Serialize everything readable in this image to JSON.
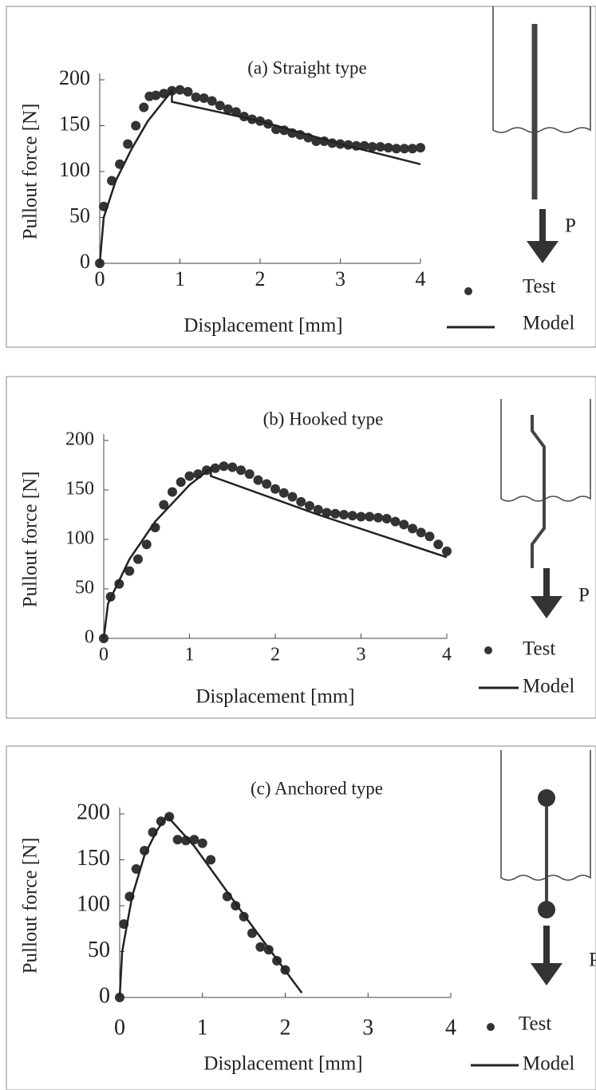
{
  "chart_data": [
    {
      "type": "line",
      "title": "(a) Straight type",
      "x_label": "Displacement [mm]",
      "y_label": "Pullout force [N]",
      "xlim": [
        0,
        4
      ],
      "ylim": [
        0,
        200
      ],
      "xticks": [
        0,
        1,
        2,
        3,
        4
      ],
      "yticks": [
        0,
        50,
        100,
        150,
        200
      ],
      "annotation": "P",
      "series": [
        {
          "name": "Test",
          "style": "markers",
          "color": "#333333",
          "x": [
            0,
            0.05,
            0.15,
            0.25,
            0.35,
            0.45,
            0.55,
            0.62,
            0.7,
            0.8,
            0.9,
            1.0,
            1.1,
            1.2,
            1.3,
            1.4,
            1.5,
            1.6,
            1.7,
            1.8,
            1.9,
            2.0,
            2.1,
            2.2,
            2.3,
            2.4,
            2.5,
            2.6,
            2.7,
            2.8,
            2.9,
            3.0,
            3.1,
            3.2,
            3.3,
            3.4,
            3.5,
            3.6,
            3.7,
            3.8,
            3.9,
            4.0
          ],
          "values": [
            0,
            62,
            90,
            108,
            130,
            150,
            170,
            182,
            183,
            185,
            188,
            189,
            187,
            181,
            180,
            177,
            172,
            168,
            165,
            160,
            157,
            155,
            152,
            146,
            145,
            142,
            140,
            137,
            133,
            133,
            131,
            130,
            129,
            128,
            128,
            127,
            127,
            126,
            125,
            125,
            125,
            126
          ]
        },
        {
          "name": "Model",
          "style": "line",
          "color": "#222222",
          "x": [
            0,
            0.05,
            0.2,
            0.4,
            0.6,
            0.9,
            0.9,
            2,
            3,
            4
          ],
          "values": [
            0,
            50,
            90,
            125,
            155,
            188,
            176,
            155,
            130,
            108
          ]
        }
      ]
    },
    {
      "type": "line",
      "title": "(b) Hooked type",
      "x_label": "Displacement [mm]",
      "y_label": "Pullout force [N]",
      "xlim": [
        0,
        4
      ],
      "ylim": [
        0,
        200
      ],
      "xticks": [
        0,
        1,
        2,
        3,
        4
      ],
      "yticks": [
        0,
        50,
        100,
        150,
        200
      ],
      "annotation": "P",
      "series": [
        {
          "name": "Test",
          "style": "markers",
          "color": "#333333",
          "x": [
            0,
            0.08,
            0.18,
            0.3,
            0.4,
            0.5,
            0.6,
            0.7,
            0.8,
            0.9,
            1.0,
            1.1,
            1.2,
            1.3,
            1.4,
            1.5,
            1.6,
            1.7,
            1.8,
            1.9,
            2.0,
            2.1,
            2.2,
            2.3,
            2.4,
            2.5,
            2.6,
            2.7,
            2.8,
            2.9,
            3.0,
            3.1,
            3.2,
            3.3,
            3.4,
            3.5,
            3.6,
            3.7,
            3.8,
            3.9,
            4.0
          ],
          "values": [
            0,
            42,
            55,
            68,
            80,
            95,
            112,
            135,
            148,
            158,
            164,
            166,
            170,
            172,
            174,
            173,
            170,
            166,
            160,
            156,
            151,
            147,
            143,
            138,
            134,
            130,
            127,
            126,
            125,
            124,
            123,
            123,
            122,
            121,
            118,
            115,
            111,
            107,
            103,
            95,
            88
          ]
        },
        {
          "name": "Model",
          "style": "line",
          "color": "#222222",
          "x": [
            0,
            0.05,
            0.3,
            0.6,
            1.0,
            1.25,
            1.25,
            2.5,
            4
          ],
          "values": [
            0,
            35,
            80,
            118,
            155,
            172,
            164,
            125,
            82
          ]
        }
      ]
    },
    {
      "type": "line",
      "title": "(c)  Anchored type",
      "x_label": "Displacement [mm]",
      "y_label": "Pullout force [N]",
      "xlim": [
        0,
        4
      ],
      "ylim": [
        0,
        200
      ],
      "xticks": [
        0,
        1,
        2,
        3,
        4
      ],
      "yticks": [
        0,
        50,
        100,
        150,
        200
      ],
      "annotation": "P",
      "series": [
        {
          "name": "Test",
          "style": "markers",
          "color": "#333333",
          "x": [
            0,
            0.05,
            0.12,
            0.2,
            0.3,
            0.4,
            0.5,
            0.6,
            0.7,
            0.8,
            0.9,
            1.0,
            1.1,
            1.3,
            1.4,
            1.5,
            1.6,
            1.7,
            1.8,
            1.9,
            2.0
          ],
          "values": [
            0,
            80,
            110,
            140,
            160,
            180,
            192,
            197,
            172,
            171,
            172,
            168,
            150,
            110,
            100,
            88,
            70,
            55,
            52,
            40,
            30
          ]
        },
        {
          "name": "Model",
          "style": "line",
          "color": "#222222",
          "x": [
            0,
            0.03,
            0.15,
            0.3,
            0.45,
            0.57,
            0.9,
            1.5,
            2.2
          ],
          "values": [
            0,
            50,
            110,
            155,
            182,
            198,
            165,
            90,
            5
          ]
        }
      ]
    }
  ]
}
